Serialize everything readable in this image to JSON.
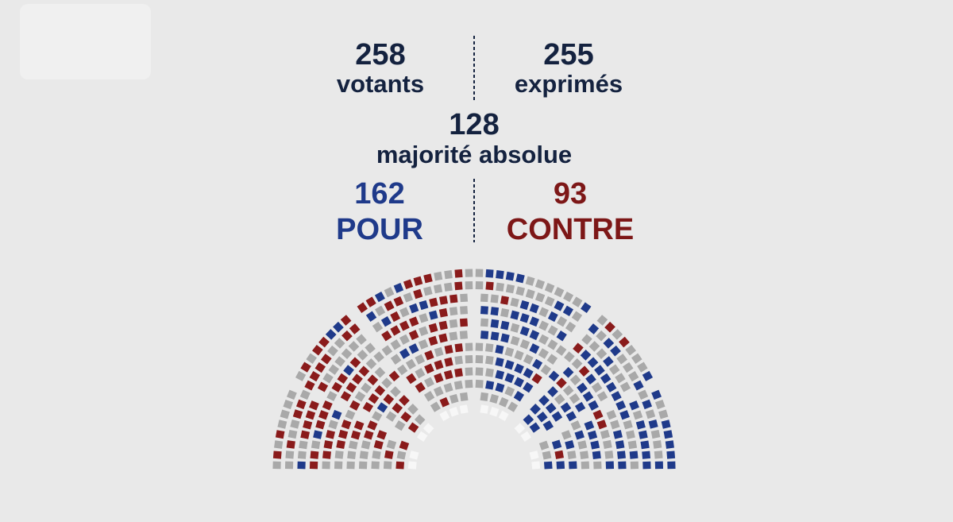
{
  "votants": {
    "number": "258",
    "label": "votants"
  },
  "exprimes": {
    "number": "255",
    "label": "exprimés"
  },
  "majorite": {
    "number": "128",
    "label": "majorité absolue"
  },
  "pour": {
    "number": "162",
    "label": "POUR"
  },
  "contre": {
    "number": "93",
    "label": "CONTRE"
  }
}
